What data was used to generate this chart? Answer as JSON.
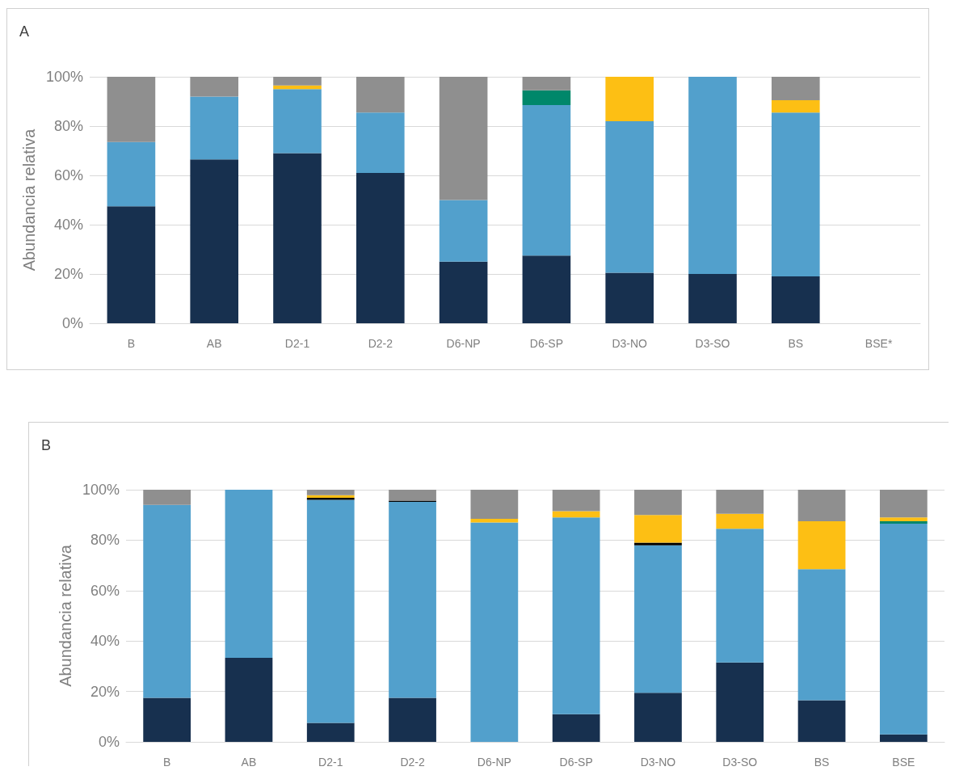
{
  "chart_data": [
    {
      "type": "bar",
      "title": "A",
      "ylabel": "Abundancia relativa",
      "stacked": true,
      "grid": "y",
      "categories": [
        "B",
        "AB",
        "D2-1",
        "D2-2",
        "D6-NP",
        "D6-SP",
        "D3-NO",
        "D3-SO",
        "BS",
        "BSE*"
      ],
      "ylim": [
        0,
        100
      ],
      "yticks": [
        {
          "value": 0,
          "label": "0%"
        },
        {
          "value": 20,
          "label": "20%"
        },
        {
          "value": 40,
          "label": "40%"
        },
        {
          "value": 60,
          "label": "60%"
        },
        {
          "value": 80,
          "label": "80%"
        },
        {
          "value": 100,
          "label": "100%"
        }
      ],
      "series": [
        {
          "color": "#17304f",
          "values": [
            47.5,
            66.5,
            69,
            61,
            25,
            27.5,
            20.5,
            20,
            19,
            null
          ]
        },
        {
          "color": "#52a0cc",
          "values": [
            26,
            25.5,
            26,
            24.5,
            25,
            61,
            61.5,
            80,
            66.5,
            null
          ]
        },
        {
          "color": "#00876a",
          "values": [
            0,
            0,
            0,
            0,
            0,
            6,
            0,
            0,
            0,
            null
          ]
        },
        {
          "color": "#fdbf14",
          "values": [
            0,
            0,
            1.5,
            0,
            0,
            0,
            18,
            0,
            5,
            null
          ]
        },
        {
          "color": "#8f8f8f",
          "values": [
            26.5,
            8,
            3.5,
            14.5,
            50,
            5.5,
            0,
            0,
            9.5,
            null
          ]
        }
      ]
    },
    {
      "type": "bar",
      "title": "B",
      "ylabel": "Abundancia relativa",
      "stacked": true,
      "grid": "y",
      "categories": [
        "B",
        "AB",
        "D2-1",
        "D2-2",
        "D6-NP",
        "D6-SP",
        "D3-NO",
        "D3-SO",
        "BS",
        "BSE"
      ],
      "ylim": [
        0,
        100
      ],
      "yticks": [
        {
          "value": 0,
          "label": "0%"
        },
        {
          "value": 20,
          "label": "20%"
        },
        {
          "value": 40,
          "label": "40%"
        },
        {
          "value": 60,
          "label": "60%"
        },
        {
          "value": 80,
          "label": "80%"
        },
        {
          "value": 100,
          "label": "100%"
        }
      ],
      "series": [
        {
          "color": "#17304f",
          "values": [
            17.5,
            33.3,
            7.5,
            17.5,
            0,
            11,
            19.5,
            31.5,
            16.5,
            3
          ]
        },
        {
          "color": "#52a0cc",
          "values": [
            76.5,
            66.7,
            88.5,
            77.7,
            87,
            78,
            58.5,
            53,
            52,
            83.5
          ]
        },
        {
          "color": "#000000",
          "values": [
            0,
            0,
            0.8,
            0.5,
            0,
            0,
            1,
            0,
            0,
            0
          ]
        },
        {
          "color": "#00876a",
          "values": [
            0,
            0,
            0,
            0,
            0,
            0,
            0,
            0,
            0,
            1
          ]
        },
        {
          "color": "#fdbf14",
          "values": [
            0,
            0,
            1,
            0,
            1.5,
            2.5,
            11,
            6,
            19,
            1.5
          ]
        },
        {
          "color": "#8f8f8f",
          "values": [
            6,
            0,
            2.2,
            4.3,
            11.5,
            8.5,
            10,
            9.5,
            12.5,
            11
          ]
        }
      ]
    }
  ]
}
